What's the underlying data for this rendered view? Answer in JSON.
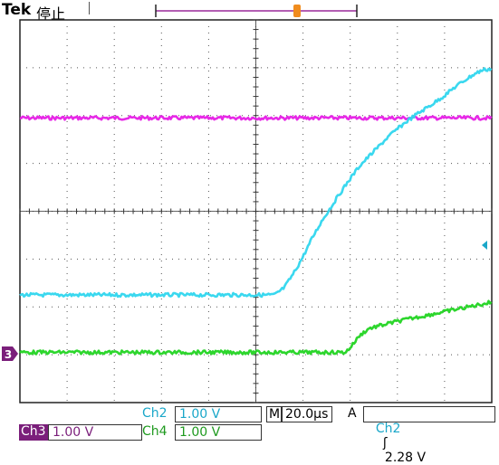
{
  "header": {
    "brand": "Tek",
    "status": "停止"
  },
  "colors": {
    "ch3": "#e61ee6",
    "ch2": "#2fd6ee",
    "ch4": "#22d422",
    "trigger": "#f08c1e",
    "grid": "#444444",
    "frame": "#222222"
  },
  "icons": {
    "trigger_position": "trigger-T-marker-icon",
    "ch3_ground": "channel-3-ground-marker-icon",
    "trigger_level": "trigger-level-arrow-icon",
    "rising_edge": "rising-edge-icon"
  },
  "ch3_marker": "3",
  "trigger_marker": "T",
  "readouts": {
    "ch2_label": "Ch2",
    "ch2_scale": "1.00 V",
    "ch3_label": "Ch3",
    "ch3_scale": "1.00 V",
    "ch4_label": "Ch4",
    "ch4_scale": "1.00 V",
    "timebase_prefix": "M",
    "timebase": "20.0µs",
    "trigger_mode": "A",
    "trigger_source": "Ch2",
    "trigger_slope": "ʃ",
    "trigger_level": "2.28 V"
  },
  "chart_data": {
    "type": "line",
    "title": "",
    "xlabel": "",
    "ylabel": "",
    "x_unit": "µs",
    "y_unit": "V",
    "xlim": [
      -140,
      60
    ],
    "ylim": [
      -4,
      4
    ],
    "grid": true,
    "divisions": {
      "x": 10,
      "y": 8
    },
    "volts_per_div": 1.0,
    "time_per_div_us": 20.0,
    "series": [
      {
        "name": "Ch3",
        "color": "#e61ee6",
        "x": [
          -140,
          60
        ],
        "y": [
          1.95,
          1.95
        ]
      },
      {
        "name": "Ch2",
        "color": "#2fd6ee",
        "x": [
          -140,
          -32,
          -28,
          -24,
          -20,
          -16,
          -12,
          -8,
          -4,
          0,
          4,
          8,
          12,
          16,
          20,
          24,
          28,
          32,
          36,
          40,
          44,
          48,
          52,
          56,
          60
        ],
        "y": [
          -1.75,
          -1.75,
          -1.6,
          -1.3,
          -0.95,
          -0.55,
          -0.2,
          0.1,
          0.4,
          0.68,
          0.95,
          1.15,
          1.35,
          1.55,
          1.72,
          1.88,
          2.02,
          2.15,
          2.28,
          2.42,
          2.58,
          2.72,
          2.85,
          2.95,
          2.98
        ]
      },
      {
        "name": "Ch4",
        "color": "#22d422",
        "x": [
          -140,
          -2,
          0,
          4,
          8,
          12,
          16,
          20,
          24,
          28,
          32,
          36,
          40,
          44,
          48,
          52,
          56,
          60
        ],
        "y": [
          -2.95,
          -2.95,
          -2.85,
          -2.6,
          -2.45,
          -2.4,
          -2.35,
          -2.3,
          -2.26,
          -2.22,
          -2.18,
          -2.14,
          -2.1,
          -2.06,
          -2.02,
          -1.98,
          -1.94,
          -1.9
        ]
      }
    ]
  }
}
